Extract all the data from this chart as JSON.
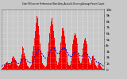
{
  "title": "Solar PV/Inverter Performance West Array Actual & Running Average Power Output",
  "bg_color": "#c8c8c8",
  "plot_bg": "#c8c8c8",
  "grid_color": "#ffffff",
  "bar_color": "#ee0000",
  "avg_color": "#0000cc",
  "num_bars": 150,
  "bar_values": [
    0.01,
    0.02,
    0.03,
    0.04,
    0.06,
    0.08,
    0.1,
    0.12,
    0.14,
    0.13,
    0.11,
    0.09,
    0.08,
    0.1,
    0.13,
    0.17,
    0.2,
    0.23,
    0.21,
    0.19,
    0.16,
    0.13,
    0.1,
    0.08,
    0.06,
    0.05,
    0.08,
    0.12,
    0.18,
    0.25,
    0.32,
    0.38,
    0.35,
    0.28,
    0.22,
    0.16,
    0.12,
    0.09,
    0.07,
    0.05,
    0.04,
    0.03,
    0.05,
    0.08,
    0.14,
    0.22,
    0.3,
    0.4,
    0.52,
    0.65,
    0.78,
    0.9,
    0.95,
    0.85,
    0.72,
    0.58,
    0.44,
    0.32,
    0.22,
    0.15,
    0.1,
    0.08,
    0.06,
    0.05,
    0.04,
    0.06,
    0.1,
    0.18,
    0.3,
    0.45,
    0.6,
    0.72,
    0.8,
    0.85,
    0.82,
    0.75,
    0.65,
    0.52,
    0.38,
    0.25,
    0.15,
    0.1,
    0.08,
    0.12,
    0.2,
    0.32,
    0.45,
    0.55,
    0.62,
    0.68,
    0.7,
    0.65,
    0.55,
    0.44,
    0.34,
    0.25,
    0.18,
    0.12,
    0.08,
    0.06,
    0.08,
    0.14,
    0.22,
    0.32,
    0.42,
    0.5,
    0.56,
    0.6,
    0.58,
    0.52,
    0.44,
    0.36,
    0.28,
    0.2,
    0.14,
    0.1,
    0.12,
    0.18,
    0.26,
    0.35,
    0.44,
    0.5,
    0.52,
    0.48,
    0.42,
    0.34,
    0.26,
    0.18,
    0.12,
    0.08,
    0.1,
    0.16,
    0.22,
    0.28,
    0.24,
    0.18,
    0.12,
    0.08,
    0.05,
    0.03,
    0.04,
    0.08,
    0.13,
    0.1,
    0.07,
    0.04,
    0.03,
    0.02,
    0.01,
    0.01
  ],
  "avg_values": [
    0.05,
    0.06,
    0.07,
    0.07,
    0.08,
    0.08,
    0.09,
    0.1,
    0.1,
    0.1,
    0.1,
    0.1,
    0.1,
    0.1,
    0.11,
    0.12,
    0.13,
    0.14,
    0.14,
    0.14,
    0.14,
    0.13,
    0.12,
    0.11,
    0.1,
    0.1,
    0.1,
    0.11,
    0.12,
    0.14,
    0.16,
    0.18,
    0.19,
    0.19,
    0.18,
    0.17,
    0.16,
    0.15,
    0.14,
    0.13,
    0.12,
    0.11,
    0.11,
    0.11,
    0.12,
    0.13,
    0.15,
    0.17,
    0.2,
    0.23,
    0.26,
    0.29,
    0.31,
    0.32,
    0.32,
    0.32,
    0.31,
    0.3,
    0.28,
    0.26,
    0.24,
    0.22,
    0.21,
    0.2,
    0.19,
    0.19,
    0.19,
    0.2,
    0.22,
    0.24,
    0.27,
    0.3,
    0.33,
    0.35,
    0.36,
    0.37,
    0.36,
    0.35,
    0.33,
    0.31,
    0.29,
    0.27,
    0.26,
    0.26,
    0.27,
    0.28,
    0.3,
    0.32,
    0.34,
    0.35,
    0.36,
    0.36,
    0.35,
    0.34,
    0.32,
    0.3,
    0.28,
    0.26,
    0.24,
    0.22,
    0.22,
    0.22,
    0.23,
    0.24,
    0.26,
    0.28,
    0.29,
    0.3,
    0.3,
    0.3,
    0.29,
    0.28,
    0.27,
    0.25,
    0.23,
    0.22,
    0.22,
    0.22,
    0.23,
    0.25,
    0.26,
    0.28,
    0.28,
    0.28,
    0.27,
    0.26,
    0.24,
    0.22,
    0.2,
    0.18,
    0.18,
    0.18,
    0.19,
    0.2,
    0.19,
    0.18,
    0.17,
    0.15,
    0.13,
    0.12,
    0.11,
    0.11,
    0.11,
    0.11,
    0.1,
    0.09,
    0.08,
    0.07,
    0.06,
    0.05
  ],
  "ylim": [
    0,
    1.0
  ],
  "yticks": [
    0.0,
    0.1,
    0.2,
    0.3,
    0.4,
    0.5,
    0.6,
    0.7,
    0.8,
    0.9,
    1.0
  ],
  "ytick_labels": [
    "0",
    "1k",
    "2k",
    "3k",
    "4k",
    "5k",
    "6k",
    "7k",
    "8k",
    "9k",
    "10k"
  ],
  "xtick_count": 20
}
